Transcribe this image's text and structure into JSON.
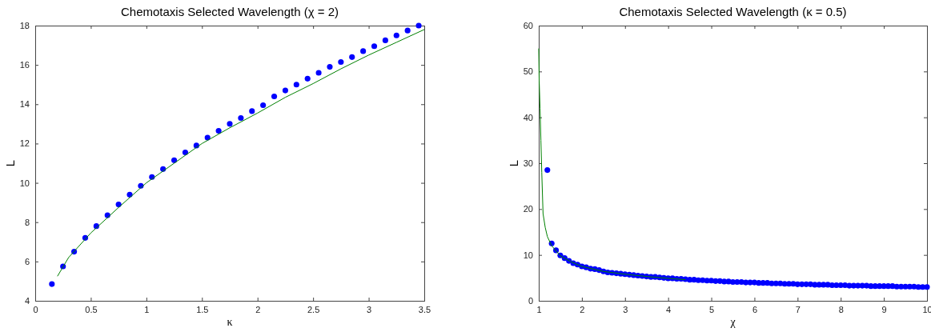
{
  "chart_data": [
    {
      "type": "scatter",
      "title": "Chemotaxis Selected Wavelength (χ = 2)",
      "xlabel": "κ",
      "ylabel": "L",
      "xlim": [
        0,
        3.5
      ],
      "ylim": [
        4,
        18
      ],
      "xticks": [
        0,
        0.5,
        1,
        1.5,
        2,
        2.5,
        3,
        3.5
      ],
      "yticks": [
        4,
        6,
        8,
        10,
        12,
        14,
        16,
        18
      ],
      "marker": "circle",
      "series": [
        {
          "color": "#0000ff",
          "x": [
            0.15,
            0.25,
            0.35,
            0.45,
            0.55,
            0.65,
            0.75,
            0.85,
            0.95,
            1.05,
            1.15,
            1.25,
            1.35,
            1.45,
            1.55,
            1.65,
            1.75,
            1.85,
            1.95,
            2.05,
            2.15,
            2.25,
            2.35,
            2.45,
            2.55,
            2.65,
            2.75,
            2.85,
            2.95,
            3.05,
            3.15,
            3.25,
            3.35,
            3.45
          ],
          "values": [
            4.85,
            5.75,
            6.5,
            7.2,
            7.8,
            8.35,
            8.9,
            9.4,
            9.85,
            10.3,
            10.7,
            11.15,
            11.55,
            11.9,
            12.3,
            12.65,
            13.0,
            13.3,
            13.65,
            13.95,
            14.4,
            14.7,
            15.0,
            15.3,
            15.6,
            15.9,
            16.15,
            16.4,
            16.7,
            16.95,
            17.25,
            17.5,
            17.75,
            18.0
          ]
        },
        {
          "type": "line",
          "marker": "none",
          "color": "#008000",
          "x": [
            0.2,
            0.3,
            0.5,
            0.75,
            1.0,
            1.25,
            1.5,
            1.75,
            2.0,
            2.25,
            2.5,
            2.75,
            3.0,
            3.25,
            3.5
          ],
          "values": [
            5.25,
            6.2,
            7.45,
            8.75,
            10.0,
            11.0,
            12.0,
            12.8,
            13.55,
            14.35,
            15.05,
            15.8,
            16.5,
            17.15,
            17.8
          ]
        }
      ]
    },
    {
      "type": "scatter",
      "title": "Chemotaxis Selected Wavelength (κ = 0.5)",
      "xlabel": "χ",
      "ylabel": "L",
      "xlim": [
        1,
        10
      ],
      "ylim": [
        0,
        60
      ],
      "xticks": [
        1,
        2,
        3,
        4,
        5,
        6,
        7,
        8,
        9,
        10
      ],
      "yticks": [
        0,
        10,
        20,
        30,
        40,
        50,
        60
      ],
      "marker": "circle",
      "series": [
        {
          "color": "#0000ff",
          "x": [
            1.2,
            1.3,
            1.4,
            1.5,
            1.6,
            1.7,
            1.8,
            1.9,
            2.0,
            2.1,
            2.2,
            2.3,
            2.4,
            2.5,
            2.6,
            2.7,
            2.8,
            2.9,
            3.0,
            3.1,
            3.2,
            3.3,
            3.4,
            3.5,
            3.6,
            3.7,
            3.8,
            3.9,
            4.0,
            4.1,
            4.2,
            4.3,
            4.4,
            4.5,
            4.6,
            4.7,
            4.8,
            4.9,
            5.0,
            5.1,
            5.2,
            5.3,
            5.4,
            5.5,
            5.6,
            5.7,
            5.8,
            5.9,
            6.0,
            6.1,
            6.2,
            6.3,
            6.4,
            6.5,
            6.6,
            6.7,
            6.8,
            6.9,
            7.0,
            7.1,
            7.2,
            7.3,
            7.4,
            7.5,
            7.6,
            7.7,
            7.8,
            7.9,
            8.0,
            8.1,
            8.2,
            8.3,
            8.4,
            8.5,
            8.6,
            8.7,
            8.8,
            8.9,
            9.0,
            9.1,
            9.2,
            9.3,
            9.4,
            9.5,
            9.6,
            9.7,
            9.8,
            9.9,
            10.0
          ],
          "values": [
            28.5,
            12.5,
            11.0,
            9.9,
            9.3,
            8.7,
            8.2,
            7.9,
            7.5,
            7.3,
            7.0,
            6.9,
            6.7,
            6.4,
            6.2,
            6.1,
            6.0,
            5.9,
            5.8,
            5.7,
            5.6,
            5.5,
            5.4,
            5.3,
            5.2,
            5.2,
            5.1,
            5.0,
            4.9,
            4.9,
            4.8,
            4.8,
            4.7,
            4.6,
            4.6,
            4.5,
            4.5,
            4.4,
            4.4,
            4.3,
            4.3,
            4.2,
            4.2,
            4.1,
            4.1,
            4.1,
            4.0,
            4.0,
            4.0,
            3.9,
            3.9,
            3.9,
            3.8,
            3.8,
            3.8,
            3.7,
            3.7,
            3.7,
            3.6,
            3.6,
            3.6,
            3.6,
            3.5,
            3.5,
            3.5,
            3.5,
            3.4,
            3.4,
            3.4,
            3.4,
            3.3,
            3.3,
            3.3,
            3.3,
            3.3,
            3.2,
            3.2,
            3.2,
            3.2,
            3.2,
            3.2,
            3.1,
            3.1,
            3.1,
            3.1,
            3.1,
            3.0,
            3.0,
            3.0
          ]
        },
        {
          "type": "line",
          "marker": "none",
          "color": "#008000",
          "x": [
            1.0,
            1.01,
            1.03,
            1.05,
            1.07,
            1.1,
            1.15,
            1.2,
            1.3,
            1.5,
            1.75,
            2.0,
            2.5,
            3.0,
            3.5,
            4.0,
            4.4
          ],
          "values": [
            55,
            48,
            42,
            35,
            28,
            19,
            16,
            14,
            12,
            9.8,
            8.5,
            7.5,
            6.4,
            5.8,
            5.3,
            4.9,
            4.6
          ]
        }
      ]
    }
  ]
}
